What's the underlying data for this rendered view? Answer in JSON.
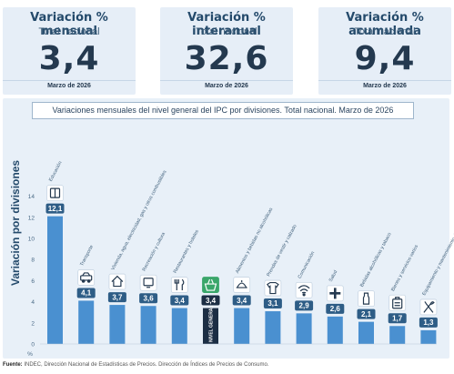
{
  "kpis": [
    {
      "title": "Variación % mensual",
      "subtitle": "Total nacional",
      "value": "3,4",
      "date": "Marzo de 2026"
    },
    {
      "title": "Variación % interanual",
      "subtitle": "Total nacional",
      "value": "32,6",
      "date": "Marzo de 2026"
    },
    {
      "title": "Variación % acumulada",
      "subtitle": "Total nacional",
      "value": "9,4",
      "date": "Marzo de 2026"
    }
  ],
  "footer": {
    "source_label": "Fuente:",
    "source_text": "INDEC, Dirección Nacional de Estadísticas de Precios. Dirección de Índices de Precios de Consumo."
  },
  "colors": {
    "bar": "#4a90d0",
    "bar_highlight": "#1c2e44",
    "label_box": "#2e5d86",
    "label_highlight": "#1c2e44",
    "panel": "#e8f0f8"
  },
  "chart_data": {
    "type": "bar",
    "title": "Variaciones mensuales del nivel general del IPC por divisiones. Total nacional. Marzo de 2026",
    "ylabel": "Variación por divisiones",
    "yunit": "%",
    "ylim": [
      0,
      14
    ],
    "yticks": [
      0,
      2,
      4,
      6,
      8,
      10,
      12,
      14
    ],
    "grid": false,
    "categories": [
      "Educación",
      "Transporte",
      "Vivienda, agua, electricidad, gas y otros combustibles",
      "Recreación y cultura",
      "Restaurantes y hoteles",
      "NIVEL GENERAL",
      "Alimentos y bebidas no alcohólicas",
      "Prendas de vestir y calzado",
      "Comunicación",
      "Salud",
      "Bebidas alcohólicas y tabaco",
      "Bienes y servicios varios",
      "Equipamiento y mantenimiento del hogar"
    ],
    "values": [
      12.1,
      4.1,
      3.7,
      3.6,
      3.4,
      3.4,
      3.4,
      3.1,
      2.9,
      2.6,
      2.1,
      1.7,
      1.3
    ],
    "value_labels": [
      "12,1",
      "4,1",
      "3,7",
      "3,6",
      "3,4",
      "3,4",
      "3,4",
      "3,1",
      "2,9",
      "2,6",
      "2,1",
      "1,7",
      "1,3"
    ],
    "icons": [
      "book-icon",
      "car-icon",
      "house-icon",
      "tv-icon",
      "cutlery-icon",
      "basket-icon",
      "food-icon",
      "tshirt-icon",
      "wifi-icon",
      "cross-icon",
      "bottle-icon",
      "briefcase-icon",
      "tools-icon"
    ],
    "highlight_index": 5
  }
}
